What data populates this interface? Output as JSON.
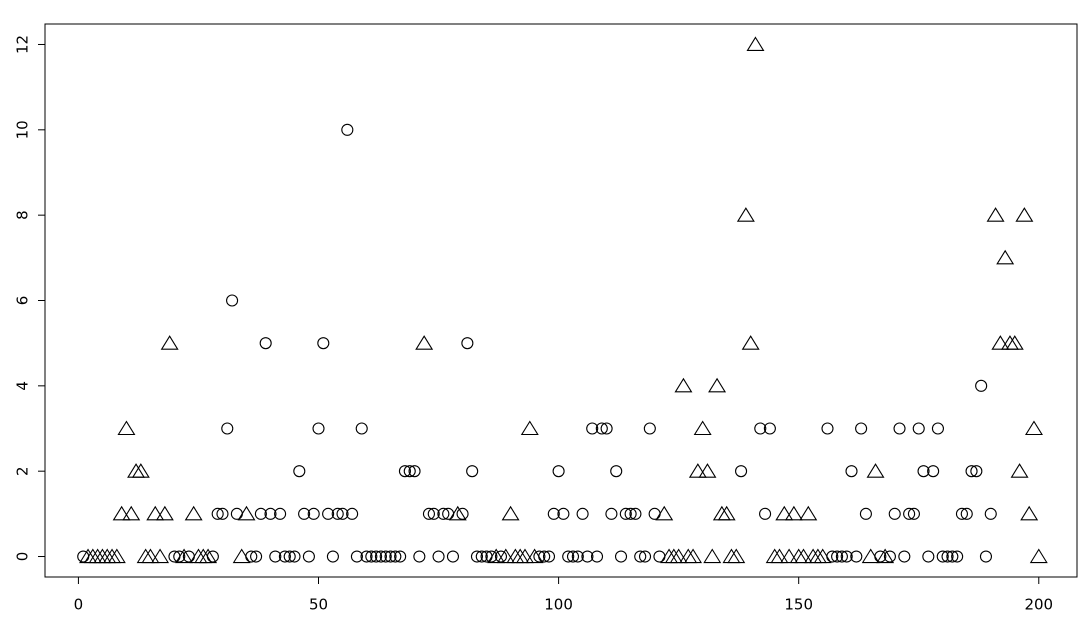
{
  "chart_data": {
    "type": "scatter",
    "xlim": [
      -6.96,
      207.96
    ],
    "ylim": [
      -0.48,
      12.48
    ],
    "xticks": [
      0,
      50,
      100,
      150,
      200
    ],
    "yticks": [
      0,
      2,
      4,
      6,
      8,
      10,
      12
    ],
    "series": [
      {
        "marker": "circle",
        "color": "#000000",
        "x": [
          1,
          20,
          21,
          23,
          28,
          29,
          30,
          31,
          32,
          33,
          36,
          37,
          38,
          39,
          40,
          41,
          42,
          43,
          44,
          45,
          46,
          47,
          48,
          49,
          50,
          51,
          52,
          53,
          54,
          55,
          56,
          57,
          58,
          59,
          60,
          61,
          62,
          63,
          64,
          65,
          66,
          67,
          68,
          69,
          70,
          71,
          73,
          74,
          75,
          76,
          77,
          78,
          80,
          81,
          82,
          83,
          84,
          85,
          86,
          88,
          96,
          97,
          98,
          99,
          100,
          101,
          102,
          103,
          104,
          105,
          106,
          107,
          108,
          109,
          110,
          111,
          112,
          113,
          114,
          115,
          116,
          117,
          118,
          119,
          120,
          121,
          138,
          142,
          143,
          144,
          156,
          157,
          158,
          159,
          160,
          161,
          162,
          163,
          164,
          167,
          169,
          170,
          171,
          172,
          173,
          174,
          175,
          176,
          177,
          178,
          179,
          180,
          181,
          182,
          183,
          184,
          185,
          186,
          187,
          188,
          189,
          190
        ],
        "values": [
          0,
          0,
          0,
          0,
          0,
          1,
          1,
          3,
          6,
          1,
          0,
          0,
          1,
          5,
          1,
          0,
          1,
          0,
          0,
          0,
          2,
          1,
          0,
          1,
          3,
          5,
          1,
          0,
          1,
          1,
          10,
          1,
          0,
          3,
          0,
          0,
          0,
          0,
          0,
          0,
          0,
          0,
          2,
          2,
          2,
          0,
          1,
          1,
          0,
          1,
          1,
          0,
          1,
          5,
          2,
          0,
          0,
          0,
          0,
          0,
          0,
          0,
          0,
          1,
          2,
          1,
          0,
          0,
          0,
          1,
          0,
          3,
          0,
          3,
          3,
          1,
          2,
          0,
          1,
          1,
          1,
          0,
          0,
          3,
          1,
          0,
          2,
          3,
          1,
          3,
          3,
          0,
          0,
          0,
          0,
          2,
          0,
          3,
          1,
          0,
          0,
          1,
          3,
          0,
          1,
          1,
          3,
          2,
          0,
          2,
          3,
          0,
          0,
          0,
          0,
          1,
          1,
          2,
          2,
          4,
          0,
          1
        ]
      },
      {
        "marker": "triangle",
        "color": "#000000",
        "x": [
          2,
          3,
          4,
          5,
          6,
          7,
          8,
          9,
          10,
          11,
          12,
          13,
          14,
          15,
          16,
          17,
          18,
          19,
          22,
          24,
          25,
          26,
          27,
          34,
          35,
          72,
          79,
          87,
          89,
          90,
          91,
          92,
          93,
          94,
          95,
          122,
          123,
          124,
          125,
          126,
          127,
          128,
          129,
          130,
          131,
          132,
          133,
          134,
          135,
          136,
          137,
          139,
          140,
          141,
          145,
          146,
          147,
          148,
          149,
          150,
          151,
          152,
          153,
          154,
          155,
          165,
          166,
          168,
          191,
          192,
          193,
          194,
          195,
          196,
          197,
          198,
          199,
          200
        ],
        "values": [
          0,
          0,
          0,
          0,
          0,
          0,
          0,
          1,
          3,
          1,
          2,
          2,
          0,
          0,
          1,
          0,
          1,
          5,
          0,
          1,
          0,
          0,
          0,
          0,
          1,
          5,
          1,
          0,
          0,
          1,
          0,
          0,
          0,
          3,
          0,
          1,
          0,
          0,
          0,
          4,
          0,
          0,
          2,
          3,
          2,
          0,
          4,
          1,
          1,
          0,
          0,
          8,
          5,
          12,
          0,
          0,
          1,
          0,
          1,
          0,
          0,
          1,
          0,
          0,
          0,
          0,
          2,
          0,
          8,
          5,
          7,
          5,
          5,
          2,
          8,
          1,
          3,
          0
        ]
      }
    ]
  }
}
